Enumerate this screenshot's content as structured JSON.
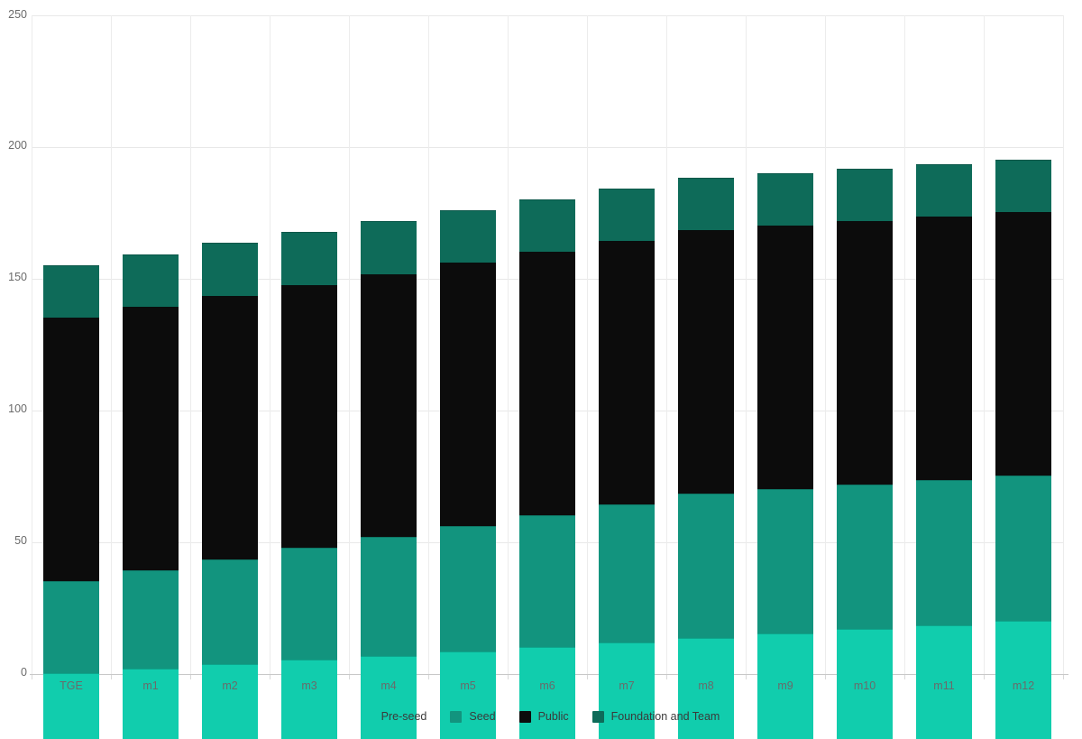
{
  "chart_data": {
    "type": "bar",
    "stacked": true,
    "title": "",
    "xlabel": "",
    "ylabel": "",
    "ylim": [
      0,
      250
    ],
    "yticks": [
      0,
      50,
      100,
      150,
      200,
      250
    ],
    "ytick_labels": [
      "0",
      "50",
      "100",
      "150",
      "200",
      "250"
    ],
    "grid": true,
    "legend_position": "bottom",
    "categories": [
      "TGE",
      "m1",
      "m2",
      "m3",
      "m4",
      "m5",
      "m6",
      "m7",
      "m8",
      "m9",
      "m10",
      "m11",
      "m12"
    ],
    "series": [
      {
        "name": "Pre-seed",
        "color": "#11CDAD",
        "values": [
          25,
          26.67,
          28.33,
          30,
          31.67,
          33.33,
          35,
          36.67,
          38.33,
          40,
          41.67,
          43.33,
          45
        ]
      },
      {
        "name": "Seed",
        "color": "#12947E",
        "values": [
          35,
          37.5,
          40,
          42.5,
          45,
          47.5,
          50,
          52.5,
          55,
          55,
          55,
          55,
          55
        ]
      },
      {
        "name": "Public",
        "color": "#0C0C0C",
        "values": [
          100,
          100,
          100,
          100,
          100,
          100,
          100,
          100,
          100,
          100,
          100,
          100,
          100
        ]
      },
      {
        "name": "Foundation and Team",
        "color": "#0E6B59",
        "values": [
          20,
          20,
          20,
          20,
          20,
          20,
          20,
          20,
          20,
          20,
          20,
          20,
          20
        ]
      }
    ]
  },
  "style": {
    "h_grid_color": "#e8e8e8",
    "v_grid_color": "#ececec",
    "axis_line_color": "#c8c8c8",
    "tick_mark_color": "#d9d9d9",
    "axis_label_color": "#6a6a6a",
    "legend_text_color": "#3a3a3a",
    "background": "#ffffff"
  }
}
